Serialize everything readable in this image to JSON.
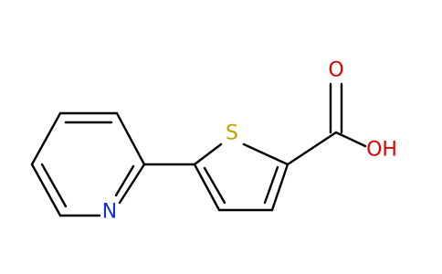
{
  "atoms": {
    "sulfur": "S",
    "carbonyl_oxygen": "O",
    "hydroxyl": "OH",
    "nitrogen": "N"
  }
}
